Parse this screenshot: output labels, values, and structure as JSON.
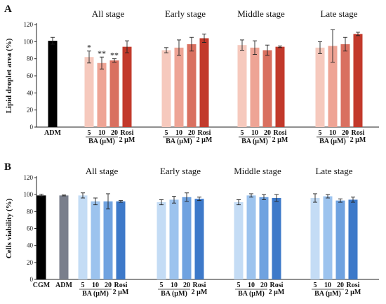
{
  "chart_data": [
    {
      "panel": "A",
      "type": "bar",
      "ylabel": "Lipid droplet area (%)",
      "ylim": [
        0,
        120
      ],
      "yticks": [
        0,
        20,
        40,
        60,
        80,
        100,
        120
      ],
      "control": {
        "label": "ADM",
        "value": 101,
        "error": 4,
        "color": "#000000"
      },
      "groups": [
        {
          "title": "All stage",
          "categories": [
            "5",
            "10",
            "20",
            "Rosi"
          ],
          "sublabel": "2 µM",
          "group_label": "BA (µM)",
          "values": [
            82,
            75,
            78,
            94
          ],
          "errors": [
            7,
            7,
            2,
            7
          ],
          "significance": [
            "*",
            "**",
            "**",
            ""
          ],
          "colors": [
            "#f6c9bd",
            "#eea495",
            "#d97060",
            "#c2392b"
          ]
        },
        {
          "title": "Early stage",
          "categories": [
            "5",
            "10",
            "20",
            "Rosi"
          ],
          "sublabel": "2 µM",
          "group_label": "BA (µM)",
          "values": [
            90,
            93,
            97,
            104
          ],
          "errors": [
            3,
            9,
            8,
            5
          ],
          "significance": [
            "",
            "",
            "",
            ""
          ],
          "colors": [
            "#f6c9bd",
            "#eea495",
            "#d97060",
            "#c2392b"
          ]
        },
        {
          "title": "Middle stage",
          "categories": [
            "5",
            "10",
            "20",
            "Rosi"
          ],
          "sublabel": "2 µM",
          "group_label": "BA (µM)",
          "values": [
            96,
            93,
            90,
            94
          ],
          "errors": [
            6,
            8,
            6,
            1
          ],
          "significance": [
            "",
            "",
            "",
            ""
          ],
          "colors": [
            "#f6c9bd",
            "#eea495",
            "#d97060",
            "#c2392b"
          ]
        },
        {
          "title": "Late stage",
          "categories": [
            "5",
            "10",
            "20",
            "Rosi"
          ],
          "sublabel": "2 µM",
          "group_label": "BA (µM)",
          "values": [
            93,
            95,
            97,
            109
          ],
          "errors": [
            7,
            19,
            8,
            2
          ],
          "significance": [
            "",
            "",
            "",
            ""
          ],
          "colors": [
            "#f6c9bd",
            "#eea495",
            "#d97060",
            "#c2392b"
          ]
        }
      ]
    },
    {
      "panel": "B",
      "type": "bar",
      "ylabel": "Cells viability (%)",
      "ylim": [
        0,
        120
      ],
      "yticks": [
        0,
        20,
        40,
        60,
        80,
        100,
        120
      ],
      "controls": [
        {
          "label": "CGM",
          "value": 99,
          "error": 1.5,
          "color": "#000000"
        },
        {
          "label": "ADM",
          "value": 99,
          "error": 0.5,
          "color": "#7a7f8c"
        }
      ],
      "groups": [
        {
          "title": "All stage",
          "categories": [
            "5",
            "10",
            "20",
            "Rosi"
          ],
          "sublabel": "2 µM",
          "group_label": "BA (µM)",
          "values": [
            99,
            92,
            92,
            92
          ],
          "errors": [
            3,
            4,
            9,
            1
          ],
          "significance": [
            "",
            "",
            "",
            ""
          ],
          "colors": [
            "#c4dcf5",
            "#9cc3ee",
            "#6fa2e0",
            "#3d79c9"
          ]
        },
        {
          "title": "Early stage",
          "categories": [
            "5",
            "10",
            "20",
            "Rosi"
          ],
          "sublabel": "2 µM",
          "group_label": "BA (µM)",
          "values": [
            91,
            94,
            97,
            95
          ],
          "errors": [
            3,
            4,
            5,
            2
          ],
          "significance": [
            "",
            "",
            "",
            ""
          ],
          "colors": [
            "#c4dcf5",
            "#9cc3ee",
            "#6fa2e0",
            "#3d79c9"
          ]
        },
        {
          "title": "Middle stage",
          "categories": [
            "5",
            "10",
            "20",
            "Rosi"
          ],
          "sublabel": "2 µM",
          "group_label": "BA (µM)",
          "values": [
            91,
            99,
            97,
            96
          ],
          "errors": [
            3,
            2,
            3,
            4
          ],
          "significance": [
            "",
            "",
            "",
            ""
          ],
          "colors": [
            "#c4dcf5",
            "#9cc3ee",
            "#6fa2e0",
            "#3d79c9"
          ]
        },
        {
          "title": "Late stage",
          "categories": [
            "5",
            "10",
            "20",
            "Rosi"
          ],
          "sublabel": "2 µM",
          "group_label": "BA (µM)",
          "values": [
            96,
            98,
            93,
            94
          ],
          "errors": [
            5,
            2,
            2,
            3
          ],
          "significance": [
            "",
            "",
            "",
            ""
          ],
          "colors": [
            "#c4dcf5",
            "#9cc3ee",
            "#6fa2e0",
            "#3d79c9"
          ]
        }
      ]
    }
  ]
}
